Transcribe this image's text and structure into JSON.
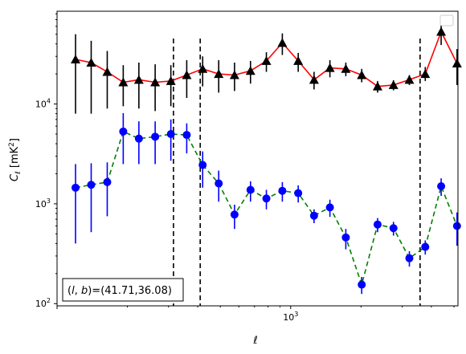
{
  "chart_data": {
    "type": "line",
    "xlabel": "ℓ",
    "ylabel": "C_ℓ  [mK²]",
    "xscale": "log",
    "yscale": "log",
    "xlim": [
      100,
      5200
    ],
    "ylim": [
      95,
      85000
    ],
    "x_tick_labels": [
      {
        "value": 1000,
        "label": "10",
        "exp": "3"
      }
    ],
    "y_tick_labels": [
      {
        "value": 100,
        "label": "10",
        "exp": "2"
      },
      {
        "value": 1000,
        "label": "10",
        "exp": "3"
      },
      {
        "value": 10000,
        "label": "10",
        "exp": "4"
      }
    ],
    "annotation": "(l, b)=(41.71,36.08)",
    "legend": {
      "position": "top-right",
      "entries": []
    },
    "vertical_lines": [
      315,
      410,
      3580
    ],
    "colors": {
      "series_1": "#ff0000",
      "series_1_markers": "#000000",
      "series_2": "#008000",
      "series_2_markers": "#0000ff",
      "vlines": "#000000"
    },
    "series": [
      {
        "line_style": "solid",
        "marker": "triangle-up",
        "x": [
          120,
          140,
          164,
          192,
          224,
          263,
          307,
          359,
          420,
          492,
          575,
          673,
          787,
          921,
          1077,
          1259,
          1472,
          1722,
          2014,
          2355,
          2754,
          3221,
          3767,
          4406,
          5152
        ],
        "y": [
          28000,
          26000,
          21000,
          16500,
          17500,
          16500,
          17000,
          19500,
          22500,
          20000,
          19500,
          21500,
          27000,
          41000,
          27000,
          17500,
          23000,
          22500,
          19500,
          15000,
          15500,
          17500,
          20000,
          53000,
          25500
        ],
        "yerr_low": [
          20000,
          18000,
          12000,
          7000,
          8500,
          8000,
          7500,
          8000,
          7500,
          7000,
          6000,
          5500,
          6000,
          10000,
          6000,
          3500,
          4500,
          3500,
          3000,
          2000,
          1800,
          2000,
          3000,
          14000,
          10000
        ],
        "yerr_high": [
          22000,
          17000,
          13000,
          8000,
          8500,
          8500,
          7500,
          8000,
          7500,
          7500,
          6500,
          5500,
          6000,
          10000,
          5500,
          3500,
          4500,
          3500,
          3000,
          2000,
          1800,
          2000,
          3500,
          11000,
          10000
        ]
      },
      {
        "line_style": "dashed",
        "marker": "circle",
        "x": [
          120,
          140,
          164,
          192,
          224,
          263,
          307,
          359,
          420,
          492,
          575,
          673,
          787,
          921,
          1077,
          1259,
          1472,
          1722,
          2014,
          2355,
          2754,
          3221,
          3767,
          4406,
          5152
        ],
        "y": [
          1450,
          1550,
          1650,
          5300,
          4500,
          4700,
          5000,
          4900,
          2450,
          1600,
          780,
          1380,
          1130,
          1350,
          1280,
          760,
          920,
          460,
          155,
          620,
          570,
          285,
          370,
          1500,
          600
        ],
        "yerr_low": [
          1050,
          1030,
          900,
          2800,
          2000,
          2200,
          2300,
          1700,
          1000,
          550,
          220,
          330,
          250,
          300,
          250,
          120,
          180,
          110,
          30,
          100,
          90,
          50,
          60,
          300,
          220
        ],
        "yerr_high": [
          1050,
          1000,
          950,
          2800,
          2200,
          2000,
          2000,
          1500,
          900,
          550,
          200,
          300,
          250,
          300,
          250,
          120,
          180,
          100,
          30,
          100,
          90,
          50,
          60,
          300,
          220
        ]
      }
    ]
  }
}
